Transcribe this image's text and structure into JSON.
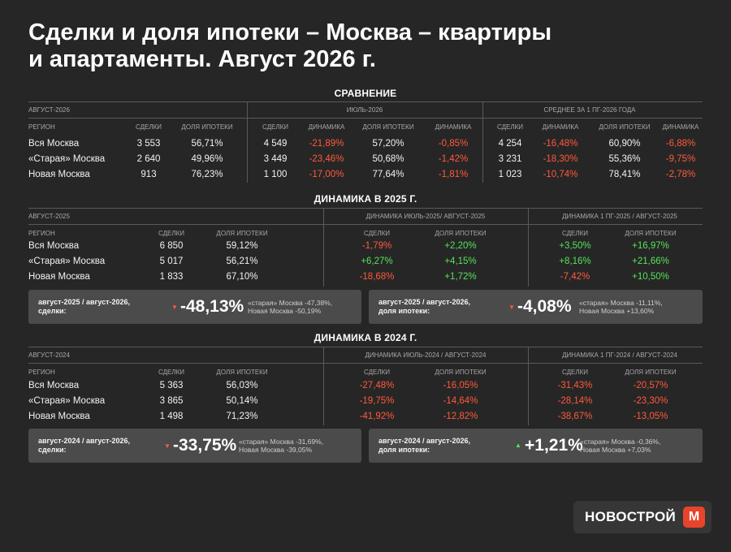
{
  "title": {
    "line1": "Сделки и доля ипотеки – Москва – квартиры",
    "line2": "и апартаменты. Август 2026 г."
  },
  "colors": {
    "background": "#262626",
    "negative": "#ff5a3c",
    "positive": "#55e35a",
    "box": "#4b4b4b",
    "brand": "#e8432b"
  },
  "comparison": {
    "section_title": "СРАВНЕНИЕ",
    "group_aug": "АВГУСТ-2026",
    "group_jul": "ИЮЛЬ-2026",
    "group_h1": "СРЕДНЕЕ ЗА 1 ПГ-2026 ГОДА",
    "col_region": "РЕГИОН",
    "col_deals": "СДЕЛКИ",
    "col_share": "ДОЛЯ ИПОТЕКИ",
    "col_dynamics": "ДИНАМИКА",
    "rows": [
      {
        "region": "Вся Москва",
        "aug_deals": "3 553",
        "aug_share": "56,71%",
        "jul_deals": "4 549",
        "jul_deals_dyn": "-21,89%",
        "jul_share": "57,20%",
        "jul_share_dyn": "-0,85%",
        "h1_deals": "4 254",
        "h1_deals_dyn": "-16,48%",
        "h1_share": "60,90%",
        "h1_share_dyn": "-6,88%"
      },
      {
        "region": "«Старая» Москва",
        "aug_deals": "2 640",
        "aug_share": "49,96%",
        "jul_deals": "3 449",
        "jul_deals_dyn": "-23,46%",
        "jul_share": "50,68%",
        "jul_share_dyn": "-1,42%",
        "h1_deals": "3 231",
        "h1_deals_dyn": "-18,30%",
        "h1_share": "55,36%",
        "h1_share_dyn": "-9,75%"
      },
      {
        "region": "Новая Москва",
        "aug_deals": "913",
        "aug_share": "76,23%",
        "jul_deals": "1 100",
        "jul_deals_dyn": "-17,00%",
        "jul_share": "77,64%",
        "jul_share_dyn": "-1,81%",
        "h1_deals": "1 023",
        "h1_deals_dyn": "-10,74%",
        "h1_share": "78,41%",
        "h1_share_dyn": "-2,78%"
      }
    ]
  },
  "dyn2025": {
    "section_title": "ДИНАМИКА В 2025 Г.",
    "group_main": "АВГУСТ-2025",
    "group_a": "ДИНАМИКА ИЮЛЬ-2025/ АВГУСТ-2025",
    "group_b": "ДИНАМИКА 1 ПГ-2025 / АВГУСТ-2025",
    "col_region": "РЕГИОН",
    "col_deals": "СДЕЛКИ",
    "col_share": "ДОЛЯ ИПОТЕКИ",
    "rows": [
      {
        "region": "Вся Москва",
        "deals": "6 850",
        "share": "59,12%",
        "a_deals": "-1,79%",
        "a_deals_sign": "neg",
        "a_share": "+2,20%",
        "a_share_sign": "pos",
        "b_deals": "+3,50%",
        "b_deals_sign": "pos",
        "b_share": "+16,97%",
        "b_share_sign": "pos"
      },
      {
        "region": "«Старая» Москва",
        "deals": "5 017",
        "share": "56,21%",
        "a_deals": "+6,27%",
        "a_deals_sign": "pos",
        "a_share": "+4,15%",
        "a_share_sign": "pos",
        "b_deals": "+8,16%",
        "b_deals_sign": "pos",
        "b_share": "+21,66%",
        "b_share_sign": "pos"
      },
      {
        "region": "Новая Москва",
        "deals": "1 833",
        "share": "67,10%",
        "a_deals": "-18,68%",
        "a_deals_sign": "neg",
        "a_share": "+1,72%",
        "a_share_sign": "pos",
        "b_deals": "-7,42%",
        "b_deals_sign": "neg",
        "b_share": "+10,50%",
        "b_share_sign": "pos"
      }
    ],
    "box_left": {
      "label1": "август-2025 / август-2026,",
      "label2": "сделки:",
      "arrow": "▼",
      "value": "-48,13%",
      "note1": "«старая» Москва -47,38%,",
      "note2": "Новая Москва -50,19%"
    },
    "box_right": {
      "label1": "август-2025 / август-2026,",
      "label2": "доля ипотеки:",
      "arrow": "▼",
      "value": "-4,08%",
      "note1": "«старая» Москва -11,11%,",
      "note2": "Новая Москва +13,60%"
    }
  },
  "dyn2024": {
    "section_title": "ДИНАМИКА В  2024 Г.",
    "group_main": "АВГУСТ-2024",
    "group_a": "ДИНАМИКА ИЮЛЬ-2024 / АВГУСТ-2024",
    "group_b": "ДИНАМИКА 1 ПГ-2024 / АВГУСТ-2024",
    "col_region": "РЕГИОН",
    "col_deals": "СДЕЛКИ",
    "col_share": "ДОЛЯ ИПОТЕКИ",
    "rows": [
      {
        "region": "Вся Москва",
        "deals": "5 363",
        "share": "56,03%",
        "a_deals": "-27,48%",
        "a_share": "-16,05%",
        "b_deals": "-31,43%",
        "b_share": "-20,57%"
      },
      {
        "region": "«Старая» Москва",
        "deals": "3 865",
        "share": "50,14%",
        "a_deals": "-19,75%",
        "a_share": "-14,64%",
        "b_deals": "-28,14%",
        "b_share": "-23,30%"
      },
      {
        "region": "Новая Москва",
        "deals": "1 498",
        "share": "71,23%",
        "a_deals": "-41,92%",
        "a_share": "-12,82%",
        "b_deals": "-38,67%",
        "b_share": "-13,05%"
      }
    ],
    "box_left": {
      "label1": "август-2024 / август-2026,",
      "label2": "сделки:",
      "arrow": "▼",
      "value": "-33,75%",
      "note1": "«старая» Москва -31,69%,",
      "note2": "Новая Москва -39,05%"
    },
    "box_right": {
      "label1": "август-2024 / август-2026,",
      "label2": "доля ипотеки:",
      "arrow": "▲",
      "value": "+1,21%",
      "note1": "«старая» Москва -0,36%,",
      "note2": "Новая Москва +7,03%"
    }
  },
  "logo": {
    "text": "НОВОСТРОЙ",
    "mark": "М"
  }
}
